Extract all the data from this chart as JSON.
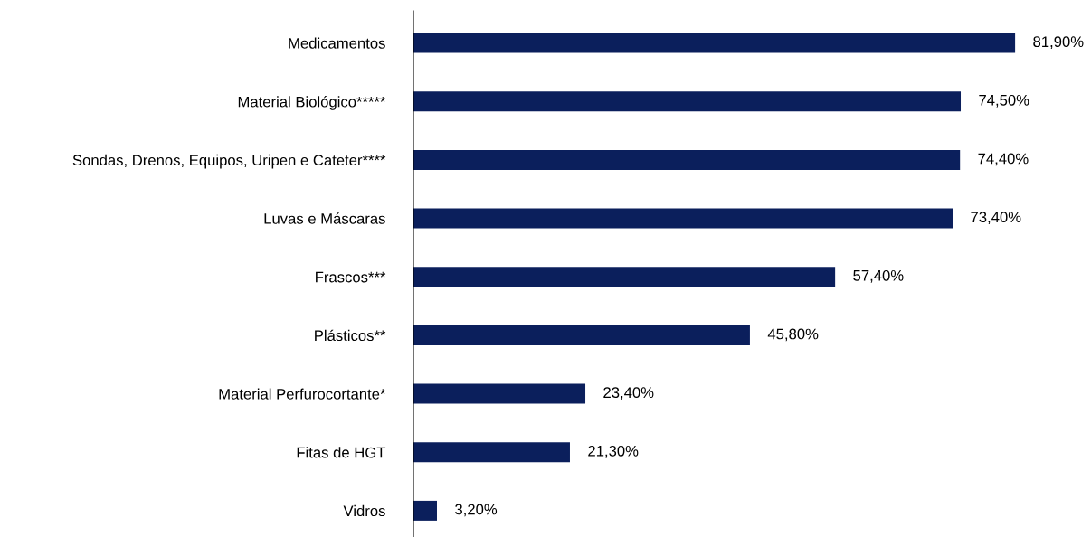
{
  "chart_data": {
    "type": "bar",
    "orientation": "horizontal",
    "categories": [
      "Medicamentos",
      "Material Biológico*****",
      "Sondas, Drenos, Equipos, Uripen e Cateter****",
      "Luvas e Máscaras",
      "Frascos***",
      "Plásticos**",
      "Material Perfurocortante*",
      "Fitas de HGT",
      "Vidros"
    ],
    "values": [
      81.9,
      74.5,
      74.4,
      73.4,
      57.4,
      45.8,
      23.4,
      21.3,
      3.2
    ],
    "value_labels": [
      "81,90%",
      "74,50%",
      "74,40%",
      "73,40%",
      "57,40%",
      "45,80%",
      "23,40%",
      "21,30%",
      "3,20%"
    ],
    "color": "#0b1f5c",
    "grid": false,
    "legend": false
  }
}
